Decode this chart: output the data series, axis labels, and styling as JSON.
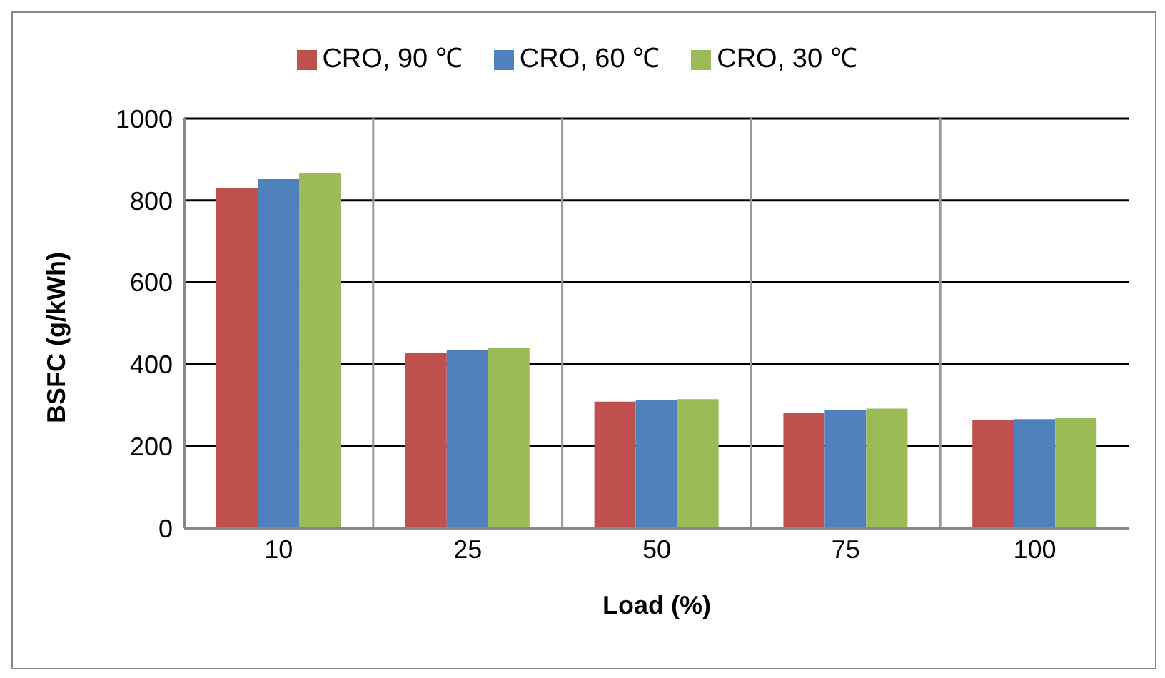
{
  "chart_data": {
    "type": "bar",
    "xlabel": "Load (%)",
    "ylabel": "BSFC (g/kWh)",
    "categories": [
      "10",
      "25",
      "50",
      "75",
      "100"
    ],
    "series": [
      {
        "name": "CRO, 90 ℃",
        "color": "#c0504d",
        "values": [
          830,
          427,
          309,
          281,
          263
        ]
      },
      {
        "name": "CRO, 60 ℃",
        "color": "#4f81bd",
        "values": [
          852,
          434,
          313,
          288,
          266
        ]
      },
      {
        "name": "CRO, 30 ℃",
        "color": "#9bbb59",
        "values": [
          867,
          439,
          315,
          292,
          270
        ]
      }
    ],
    "ylim": [
      0,
      1000
    ],
    "yticks": [
      0,
      200,
      400,
      600,
      800,
      1000
    ],
    "grid": true,
    "legend": "top"
  }
}
